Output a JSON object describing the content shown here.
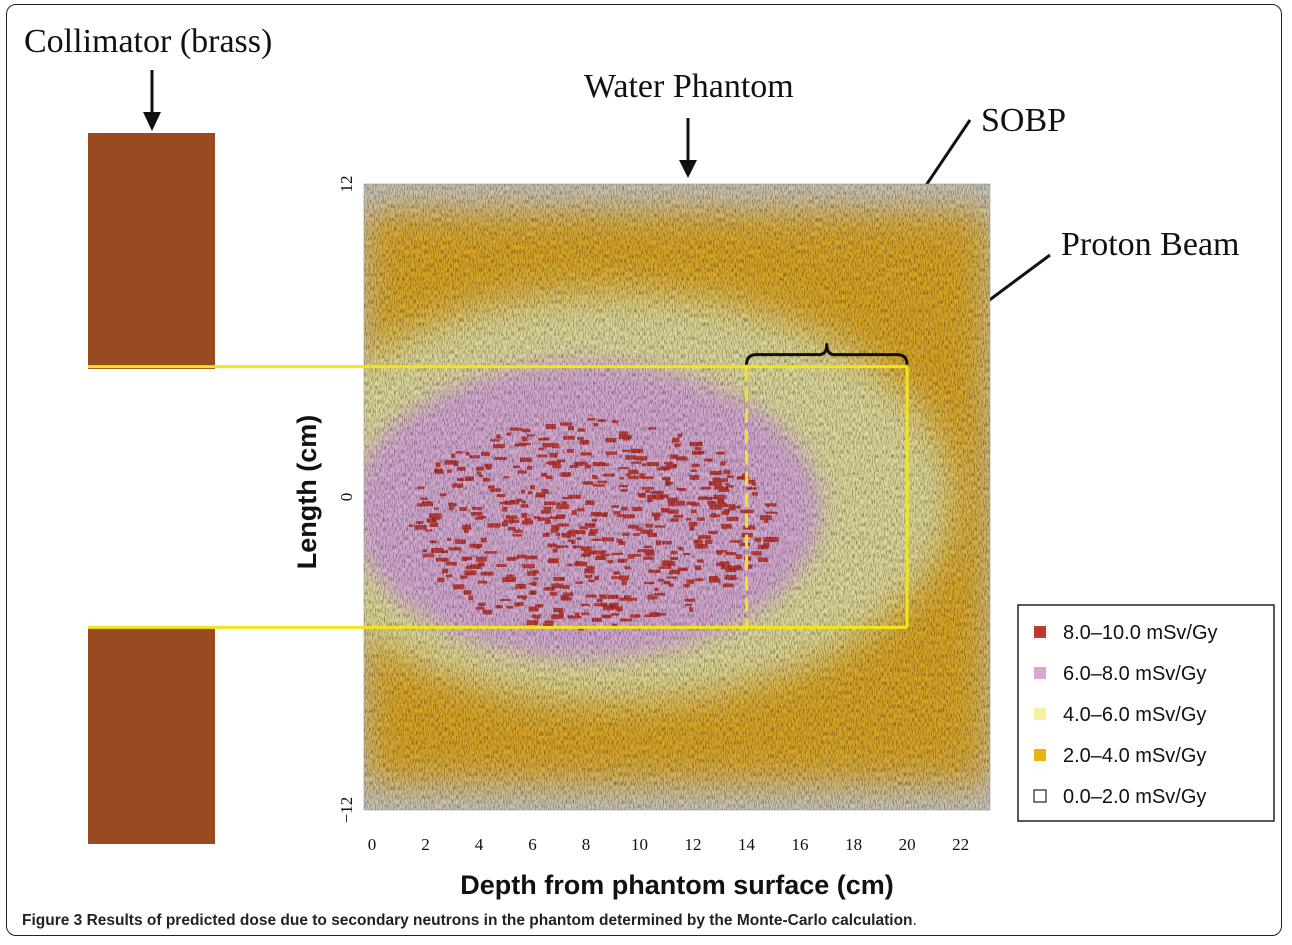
{
  "annotations": {
    "collimator": "Collimator (brass)",
    "water_phantom": "Water Phantom",
    "sobp": "SOBP",
    "proton_beam": "Proton Beam"
  },
  "chart_data": {
    "type": "heatmap",
    "xlabel": "Depth from phantom surface (cm)",
    "ylabel": "Length (cm)",
    "x_ticks": [
      0,
      2,
      4,
      6,
      8,
      10,
      12,
      14,
      16,
      18,
      20,
      22
    ],
    "y_ticks": [
      -12,
      0,
      12
    ],
    "xlim": [
      -0.3,
      23.1
    ],
    "ylim": [
      -12,
      12
    ],
    "beam_region": {
      "depth": [
        -0.3,
        20
      ],
      "length": [
        -5,
        5
      ]
    },
    "sobp_region": {
      "depth": [
        14,
        20
      ]
    },
    "legend": [
      {
        "label": "8.0–10.0 mSv/Gy",
        "color": "#c0392b"
      },
      {
        "label": "6.0–8.0 mSv/Gy",
        "color": "#d9a7d6"
      },
      {
        "label": "4.0–6.0 mSv/Gy",
        "color": "#f4f2a0"
      },
      {
        "label": "2.0–4.0 mSv/Gy",
        "color": "#e9b318"
      },
      {
        "label": "0.0–2.0 mSv/Gy",
        "color": "#ffffff"
      }
    ],
    "dose_zones_mSv_per_Gy": [
      {
        "range": "0.0–2.0",
        "color": "#c9c6c0"
      },
      {
        "range": "2.0–4.0",
        "color": "#d9a528"
      },
      {
        "range": "4.0–6.0",
        "color": "#dcd79a"
      },
      {
        "range": "6.0–8.0",
        "color": "#d3a9d0"
      },
      {
        "range": "8.0–10.0",
        "color": "#b8322c"
      }
    ]
  },
  "colors": {
    "collimator": "#9a4a20",
    "beam_outline": "#f2e51a",
    "bracket": "#111111"
  },
  "caption": {
    "label": "Figure 3",
    "text": " Results of predicted dose due to secondary neutrons in the phantom determined by the Monte-Carlo calculation",
    "end": "."
  }
}
